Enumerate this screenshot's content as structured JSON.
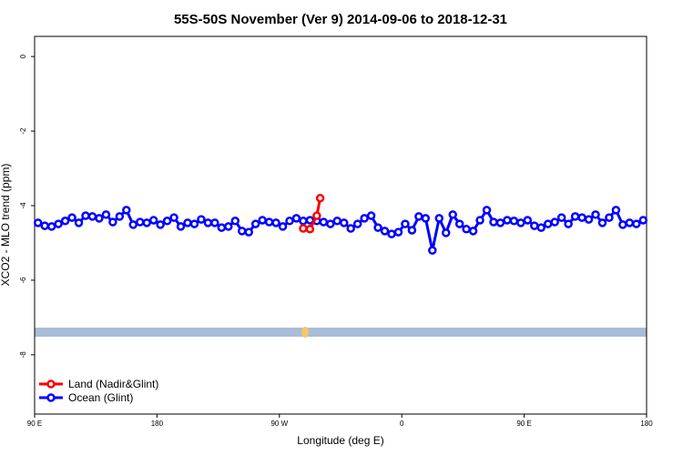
{
  "chart_data": {
    "type": "line",
    "title": "55S-50S November (Ver 9)   2014-09-06 to 2018-12-31",
    "x_label": "Longitude (deg E)",
    "y_label": "XCO2 - MLO trend (ppm)",
    "xlim": [
      90,
      540
    ],
    "ylim": [
      0.54,
      -9.59
    ],
    "xticks": [
      {
        "value": 90,
        "label": "90 E"
      },
      180,
      {
        "value": 270,
        "label": "90 W"
      },
      {
        "value": 360,
        "label": "0"
      },
      {
        "value": 450,
        "label": "90 E"
      },
      {
        "value": 540,
        "label": "180"
      }
    ],
    "yticks": [
      0,
      -2,
      -4,
      -6,
      -8
    ],
    "legend": "bottom-left",
    "series": [
      {
        "name": "Land (Nadir&Glint)",
        "color": "#ff0000",
        "x": [
          287.5,
          292.5,
          297.5,
          300
        ],
        "values": [
          -4.61,
          -4.63,
          -4.27,
          -3.8
        ]
      },
      {
        "name": "Ocean (Glint)",
        "color": "#0000ff",
        "x": [
          92.5,
          97.5,
          102.5,
          107.5,
          112.5,
          117.5,
          122.5,
          127.5,
          132.5,
          137.5,
          142.5,
          147.5,
          152.5,
          157.5,
          162.5,
          167.5,
          172.5,
          177.5,
          182.5,
          187.5,
          192.5,
          197.5,
          202.5,
          207.5,
          212.5,
          217.5,
          222.5,
          227.5,
          232.5,
          237.5,
          242.5,
          247.5,
          252.5,
          257.5,
          262.5,
          267.5,
          272.5,
          277.5,
          282.5,
          287.5,
          292.5,
          297.5,
          302.5,
          307.5,
          312.5,
          317.5,
          322.5,
          327.5,
          332.5,
          337.5,
          342.5,
          347.5,
          352.5,
          357.5,
          362.5,
          367.5,
          372.5,
          377.5,
          382.5,
          387.5,
          392.5,
          397.5,
          402.5,
          407.5,
          412.5,
          417.5,
          422.5,
          427.5,
          432.5,
          437.5,
          442.5,
          447.5,
          452.5,
          457.5,
          462.5,
          467.5,
          472.5,
          477.5,
          482.5,
          487.5,
          492.5,
          497.5,
          502.5,
          507.5,
          512.5,
          517.5,
          522.5,
          527.5,
          532.5,
          537.5
        ],
        "values": [
          -4.46,
          -4.54,
          -4.56,
          -4.49,
          -4.41,
          -4.32,
          -4.46,
          -4.27,
          -4.29,
          -4.34,
          -4.24,
          -4.44,
          -4.29,
          -4.12,
          -4.51,
          -4.44,
          -4.46,
          -4.39,
          -4.51,
          -4.41,
          -4.32,
          -4.56,
          -4.46,
          -4.49,
          -4.37,
          -4.46,
          -4.46,
          -4.59,
          -4.56,
          -4.41,
          -4.68,
          -4.71,
          -4.49,
          -4.39,
          -4.44,
          -4.46,
          -4.56,
          -4.41,
          -4.34,
          -4.41,
          -4.39,
          -4.41,
          -4.44,
          -4.49,
          -4.41,
          -4.46,
          -4.61,
          -4.49,
          -4.34,
          -4.27,
          -4.59,
          -4.68,
          -4.76,
          -4.71,
          -4.49,
          -4.66,
          -4.29,
          -4.34,
          -5.2,
          -4.34,
          -4.73,
          -4.24,
          -4.49,
          -4.63,
          -4.68,
          -4.39,
          -4.12,
          -4.44,
          -4.46,
          -4.39,
          -4.41,
          -4.46,
          -4.39,
          -4.54,
          -4.59,
          -4.49,
          -4.44,
          -4.32,
          -4.49,
          -4.29,
          -4.32,
          -4.37,
          -4.24,
          -4.46,
          -4.32,
          -4.12,
          -4.51,
          -4.46,
          -4.49,
          -4.39
        ]
      }
    ]
  }
}
